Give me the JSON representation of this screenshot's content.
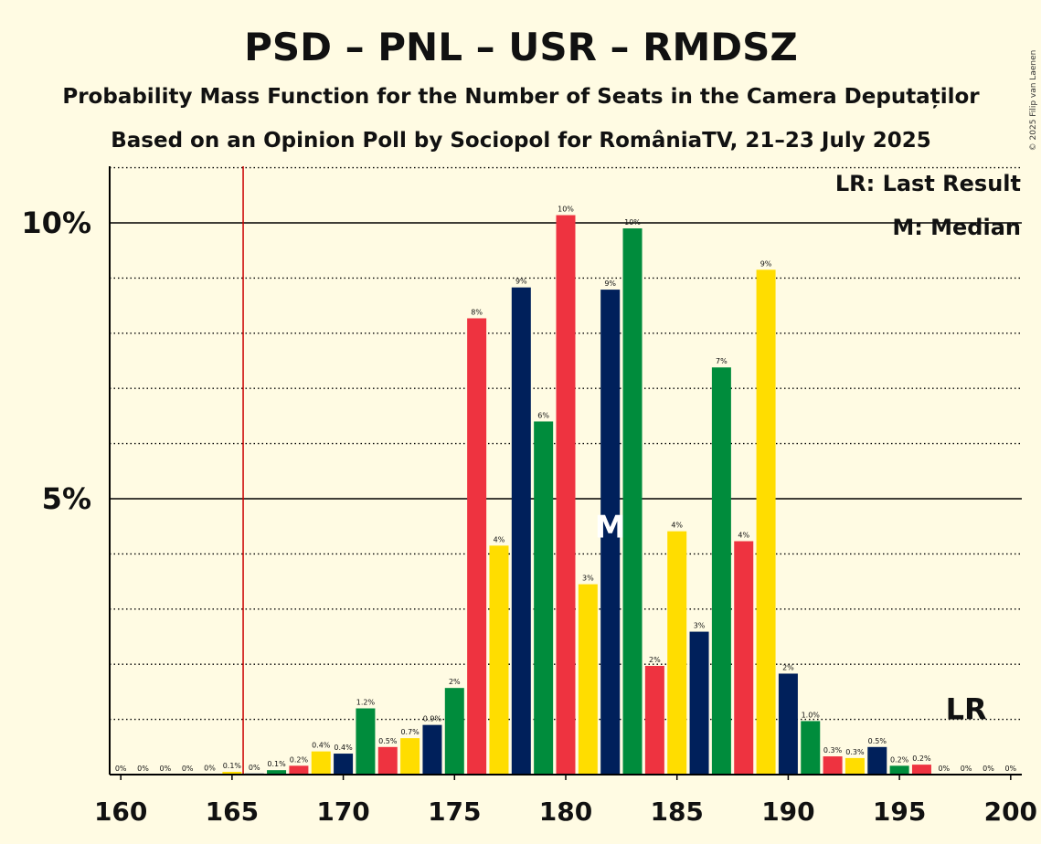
{
  "colors": {
    "background": "#FFFBE3",
    "psd": "#EE3340",
    "pnl": "#FFDD00",
    "usr": "#00205B",
    "rmdsz": "#008C3C",
    "last_result_line": "#CC0000"
  },
  "chart_data": {
    "type": "bar",
    "title": "PSD – PNL – USR – RMDSZ",
    "subtitle": "Probability Mass Function for the Number of Seats in the Camera Deputaților",
    "subtitle2": "Based on an Opinion Poll by Sociopol for RomâniaTV, 21–23 July 2025",
    "copyright": "© 2025 Filip van Laenen",
    "legend": [
      "LR: Last Result",
      "M: Median"
    ],
    "legend_position": "top-right",
    "xlabel": "",
    "ylabel": "",
    "x_ticks": [
      "160",
      "165",
      "170",
      "175",
      "180",
      "185",
      "190",
      "195",
      "200"
    ],
    "y_ticks": [
      "5%",
      "10%"
    ],
    "xlim": [
      160,
      200
    ],
    "ylim": [
      0,
      11
    ],
    "grid": "dotted horizontal every 1%, solid at 5% and 10%",
    "last_result": {
      "seats": 166,
      "label": "LR"
    },
    "median": {
      "seats": 182,
      "label": "M"
    },
    "color_cycle": [
      "psd",
      "pnl",
      "usr",
      "rmdsz"
    ],
    "seats": [
      160,
      161,
      162,
      163,
      164,
      165,
      166,
      167,
      168,
      169,
      170,
      171,
      172,
      173,
      174,
      175,
      176,
      177,
      178,
      179,
      180,
      181,
      182,
      183,
      184,
      185,
      186,
      187,
      188,
      189,
      190,
      191,
      192,
      193,
      194,
      195,
      196,
      197,
      198,
      199,
      200
    ],
    "values": [
      0,
      0,
      0,
      0,
      0.01,
      0.05,
      0.02,
      0.08,
      0.16,
      0.42,
      0.38,
      1.2,
      0.5,
      0.66,
      0.9,
      1.57,
      8.27,
      4.15,
      8.83,
      6.4,
      10.14,
      3.45,
      8.79,
      9.9,
      1.97,
      4.41,
      2.59,
      7.38,
      4.23,
      9.15,
      1.83,
      0.97,
      0.33,
      0.3,
      0.5,
      0.16,
      0.18,
      0,
      0,
      0,
      0
    ],
    "labels": [
      "0%",
      "0%",
      "0%",
      "0%",
      "0%",
      "0.1%",
      "0%",
      "0.1%",
      "0.2%",
      "0.4%",
      "0.4%",
      "1.2%",
      "0.5%",
      "0.7%",
      "0.9%",
      "2%",
      "8%",
      "4%",
      "9%",
      "6%",
      "10%",
      "3%",
      "9%",
      "10%",
      "2%",
      "4%",
      "3%",
      "7%",
      "4%",
      "9%",
      "2%",
      "1.0%",
      "0.3%",
      "0.3%",
      "0.5%",
      "0.2%",
      "0.2%",
      "0%",
      "0%",
      "0%",
      "0%"
    ]
  }
}
